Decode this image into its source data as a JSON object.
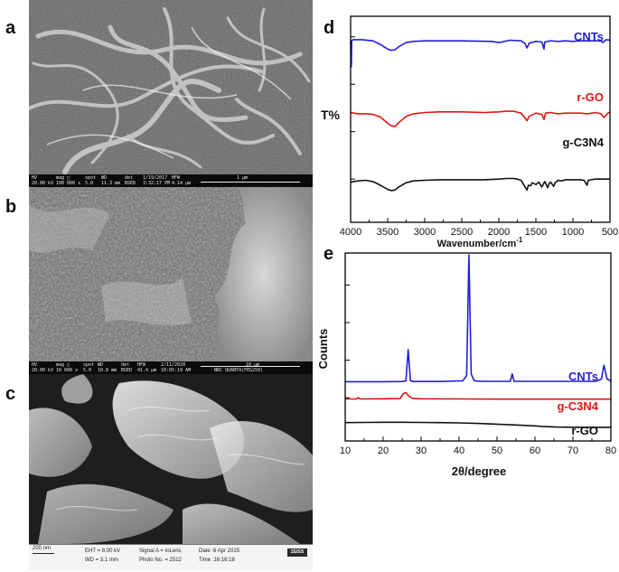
{
  "panels": {
    "a": "a",
    "b": "b",
    "c": "c",
    "d": "d",
    "e": "e"
  },
  "sem_a": {
    "hv_label": "HV",
    "hv": "20.00 kV",
    "mag_label": "mag □",
    "mag": "100 000 x",
    "spot_label": "spot",
    "spot": "5.0",
    "wd_label": "WD",
    "wd": "11.3 mm",
    "det_label": "det",
    "det": "BSED",
    "date": "1/19/2017",
    "time": "3:32:17 PM",
    "hfw_label": "HFW",
    "hfw": "4.14 µm",
    "scale": "1 µm"
  },
  "sem_b": {
    "hv_label": "HV",
    "hv": "20.00 kV",
    "mag_label": "mag □",
    "mag": "10 000 x",
    "spot_label": "spot",
    "spot": "5.0",
    "wd_label": "WD",
    "wd": "10.8 mm",
    "det_label": "det",
    "det": "BSED",
    "hfw_label": "HFW",
    "hfw": "41.4 µm",
    "date": "2/11/2020",
    "time": "10:05:19 AM",
    "scale": "10 µm",
    "instrument": "NRC QUANTA(FEG250)"
  },
  "sem_c": {
    "scale": "200 nm",
    "eht": "EHT = 8.00 kV",
    "wd": "WD = 3.1 mm",
    "signal": "Signal A = InLens",
    "photo": "Photo No. = 2512",
    "date": "Date :6 Apr 2015",
    "time": "Time :16:16:18",
    "brand": "ZEISS"
  },
  "chart_data": [
    {
      "panel": "d",
      "type": "line",
      "title": "",
      "xlabel": "Wavenumber/cm",
      "xlabel_sup": "-1",
      "ylabel": "T%",
      "xlim": [
        4000,
        500
      ],
      "xticks": [
        4000,
        3500,
        3000,
        2500,
        2000,
        1500,
        1000,
        500
      ],
      "ylim": [
        0,
        100
      ],
      "series": [
        {
          "name": "CNTs",
          "color": "#1f1fd6",
          "x": [
            4000,
            3990,
            3985,
            3970,
            3850,
            3700,
            3600,
            3500,
            3450,
            3400,
            3350,
            3250,
            3150,
            3000,
            2900,
            2500,
            2100,
            2000,
            1850,
            1700,
            1650,
            1620,
            1590,
            1500,
            1420,
            1390,
            1380,
            1300,
            1200,
            1100,
            1000,
            900,
            800,
            700,
            620,
            600,
            550,
            500
          ],
          "y": [
            92,
            48,
            92,
            94,
            94,
            92,
            86,
            78,
            76,
            77,
            82,
            89,
            91,
            92,
            92,
            92,
            91,
            89,
            93,
            92,
            88,
            80,
            88,
            91,
            90,
            78,
            90,
            92,
            91,
            92,
            91,
            92,
            92,
            92,
            92,
            89,
            94,
            93
          ]
        },
        {
          "name": "r-GO",
          "color": "#dd1515",
          "x": [
            4000,
            3900,
            3800,
            3700,
            3600,
            3500,
            3450,
            3400,
            3350,
            3250,
            3150,
            3000,
            2800,
            2500,
            2200,
            2000,
            1900,
            1800,
            1700,
            1650,
            1620,
            1590,
            1500,
            1420,
            1390,
            1370,
            1300,
            1200,
            1100,
            1000,
            900,
            800,
            700,
            620,
            580,
            520,
            500
          ],
          "y": [
            65,
            63,
            63,
            62,
            58,
            48,
            44,
            43,
            49,
            59,
            63,
            65,
            66,
            66,
            65,
            66,
            67,
            67,
            64,
            57,
            52,
            59,
            64,
            62,
            54,
            64,
            65,
            63,
            64,
            64,
            64,
            63,
            65,
            63,
            57,
            65,
            65
          ]
        },
        {
          "name": "g-C3N4",
          "color": "#111111",
          "x": [
            4000,
            3900,
            3800,
            3700,
            3600,
            3500,
            3450,
            3400,
            3350,
            3250,
            3150,
            3000,
            2800,
            2500,
            2200,
            2000,
            1900,
            1800,
            1750,
            1700,
            1680,
            1640,
            1620,
            1600,
            1570,
            1550,
            1500,
            1460,
            1420,
            1380,
            1340,
            1320,
            1300,
            1260,
            1240,
            1200,
            1150,
            1100,
            1000,
            900,
            850,
            810,
            790,
            750,
            700,
            600,
            500
          ],
          "y": [
            35,
            37,
            38,
            36,
            30,
            23,
            21,
            22,
            27,
            34,
            37,
            38,
            39,
            39,
            39,
            40,
            41,
            41,
            40,
            38,
            34,
            26,
            22,
            30,
            29,
            34,
            31,
            35,
            27,
            36,
            26,
            33,
            35,
            28,
            34,
            38,
            37,
            39,
            39,
            39,
            38,
            30,
            38,
            39,
            40,
            40,
            40
          ]
        }
      ]
    },
    {
      "panel": "e",
      "type": "line",
      "title": "",
      "xlabel": "2θ/degree",
      "ylabel": "Counts",
      "xlim": [
        10,
        80
      ],
      "xticks": [
        10,
        20,
        30,
        40,
        50,
        60,
        70,
        80
      ],
      "ylim": [
        0,
        100
      ],
      "series": [
        {
          "name": "CNTs",
          "color": "#1f1fd6",
          "x": [
            10,
            20,
            25,
            26,
            26.6,
            27.2,
            28,
            35,
            41,
            42,
            42.6,
            43.2,
            44,
            46,
            53.5,
            54,
            54.5,
            60,
            70,
            76,
            77.5,
            78.2,
            79,
            80
          ],
          "y": [
            26.5,
            26.5,
            26.6,
            27,
            45,
            27,
            26.6,
            26.6,
            27,
            30,
            100,
            31,
            27,
            26.7,
            26.7,
            31,
            26.7,
            26.7,
            26.7,
            26.7,
            28,
            36,
            28,
            27
          ]
        },
        {
          "name": "g-C3N4",
          "color": "#dd1515",
          "x": [
            10,
            13,
            13.4,
            14,
            20,
            24.5,
            25.3,
            26,
            26.8,
            27.8,
            30,
            40,
            50,
            60,
            70,
            80
          ],
          "y": [
            16.5,
            16.5,
            17.2,
            16.5,
            16.6,
            16.8,
            19.6,
            20.2,
            18,
            16.8,
            16.6,
            16.5,
            16.4,
            16.4,
            16.4,
            16.4
          ]
        },
        {
          "name": "r-GO",
          "color": "#111111",
          "x": [
            10,
            15,
            20,
            25,
            30,
            35,
            40,
            45,
            50,
            55,
            60,
            62,
            64,
            66,
            70,
            75,
            80
          ],
          "y": [
            2.8,
            2.9,
            3.0,
            3.0,
            2.9,
            2.8,
            2.6,
            2.3,
            1.9,
            1.4,
            0.9,
            0.6,
            0.35,
            0.2,
            0.1,
            0.05,
            0.05
          ]
        }
      ],
      "labels": [
        {
          "text": "CNTs",
          "color": "#1f1fd6"
        },
        {
          "text": "g-C3N4",
          "color": "#dd1515"
        },
        {
          "text": "r-GO",
          "color": "#111111"
        }
      ]
    }
  ]
}
